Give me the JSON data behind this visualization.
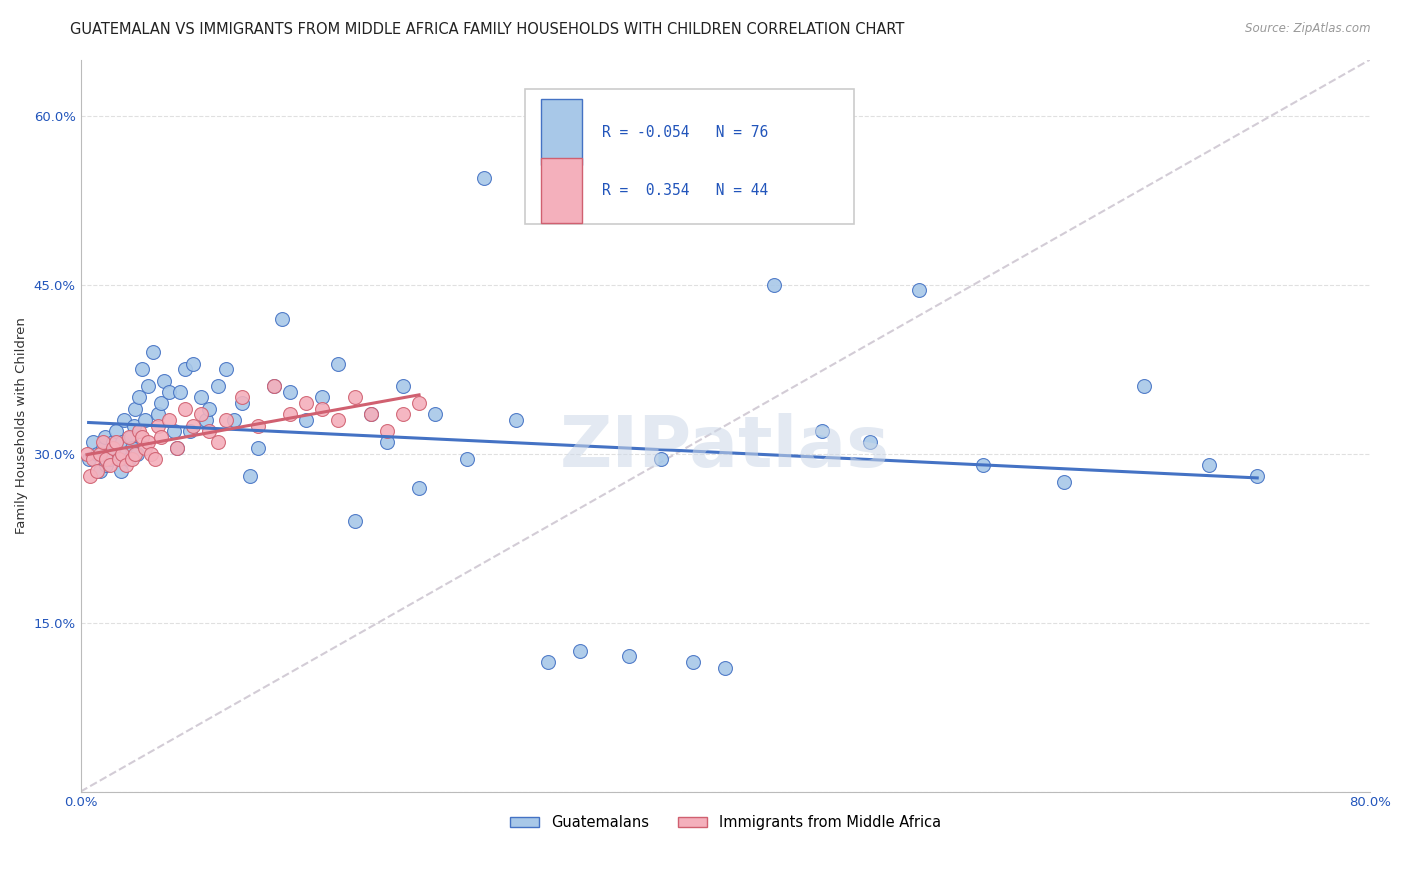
{
  "title": "GUATEMALAN VS IMMIGRANTS FROM MIDDLE AFRICA FAMILY HOUSEHOLDS WITH CHILDREN CORRELATION CHART",
  "source": "Source: ZipAtlas.com",
  "ylabel": "Family Households with Children",
  "xlim": [
    0.0,
    0.8
  ],
  "ylim": [
    0.0,
    0.65
  ],
  "yticks": [
    0.0,
    0.15,
    0.3,
    0.45,
    0.6
  ],
  "ytick_labels": [
    "",
    "15.0%",
    "30.0%",
    "45.0%",
    "60.0%"
  ],
  "xticks": [
    0.0,
    0.1,
    0.2,
    0.3,
    0.4,
    0.5,
    0.6,
    0.7,
    0.8
  ],
  "xtick_labels": [
    "0.0%",
    "",
    "",
    "",
    "",
    "",
    "",
    "",
    "80.0%"
  ],
  "guatemalan_color": "#a8c8e8",
  "immigrant_color": "#f4b0bc",
  "trend_blue": "#4472c4",
  "trend_pink": "#d06070",
  "R_guatemalan": -0.054,
  "N_guatemalan": 76,
  "R_immigrant": 0.354,
  "N_immigrant": 44,
  "guatemalan_x": [
    0.005,
    0.008,
    0.01,
    0.012,
    0.014,
    0.015,
    0.016,
    0.018,
    0.019,
    0.02,
    0.022,
    0.023,
    0.025,
    0.026,
    0.027,
    0.028,
    0.03,
    0.031,
    0.032,
    0.033,
    0.034,
    0.035,
    0.036,
    0.038,
    0.04,
    0.042,
    0.045,
    0.048,
    0.05,
    0.052,
    0.055,
    0.058,
    0.06,
    0.062,
    0.065,
    0.068,
    0.07,
    0.075,
    0.078,
    0.08,
    0.085,
    0.09,
    0.095,
    0.1,
    0.105,
    0.11,
    0.12,
    0.125,
    0.13,
    0.14,
    0.15,
    0.16,
    0.17,
    0.18,
    0.19,
    0.2,
    0.21,
    0.22,
    0.24,
    0.25,
    0.27,
    0.29,
    0.31,
    0.34,
    0.36,
    0.38,
    0.4,
    0.43,
    0.46,
    0.49,
    0.52,
    0.56,
    0.61,
    0.66,
    0.7,
    0.73
  ],
  "guatemalan_y": [
    0.295,
    0.31,
    0.3,
    0.285,
    0.305,
    0.315,
    0.29,
    0.295,
    0.3,
    0.31,
    0.32,
    0.295,
    0.285,
    0.31,
    0.33,
    0.3,
    0.295,
    0.315,
    0.305,
    0.325,
    0.34,
    0.3,
    0.35,
    0.375,
    0.33,
    0.36,
    0.39,
    0.335,
    0.345,
    0.365,
    0.355,
    0.32,
    0.305,
    0.355,
    0.375,
    0.32,
    0.38,
    0.35,
    0.33,
    0.34,
    0.36,
    0.375,
    0.33,
    0.345,
    0.28,
    0.305,
    0.36,
    0.42,
    0.355,
    0.33,
    0.35,
    0.38,
    0.24,
    0.335,
    0.31,
    0.36,
    0.27,
    0.335,
    0.295,
    0.545,
    0.33,
    0.115,
    0.125,
    0.12,
    0.295,
    0.115,
    0.11,
    0.45,
    0.32,
    0.31,
    0.445,
    0.29,
    0.275,
    0.36,
    0.29,
    0.28
  ],
  "immigrant_x": [
    0.004,
    0.006,
    0.008,
    0.01,
    0.012,
    0.014,
    0.016,
    0.018,
    0.02,
    0.022,
    0.024,
    0.026,
    0.028,
    0.03,
    0.032,
    0.034,
    0.036,
    0.038,
    0.04,
    0.042,
    0.044,
    0.046,
    0.048,
    0.05,
    0.055,
    0.06,
    0.065,
    0.07,
    0.075,
    0.08,
    0.085,
    0.09,
    0.1,
    0.11,
    0.12,
    0.13,
    0.14,
    0.15,
    0.16,
    0.17,
    0.18,
    0.19,
    0.2,
    0.21
  ],
  "immigrant_y": [
    0.3,
    0.28,
    0.295,
    0.285,
    0.3,
    0.31,
    0.295,
    0.29,
    0.305,
    0.31,
    0.295,
    0.3,
    0.29,
    0.315,
    0.295,
    0.3,
    0.32,
    0.315,
    0.305,
    0.31,
    0.3,
    0.295,
    0.325,
    0.315,
    0.33,
    0.305,
    0.34,
    0.325,
    0.335,
    0.32,
    0.31,
    0.33,
    0.35,
    0.325,
    0.36,
    0.335,
    0.345,
    0.34,
    0.33,
    0.35,
    0.335,
    0.32,
    0.335,
    0.345
  ],
  "background_color": "#ffffff",
  "grid_color": "#e0e0e0",
  "watermark_text": "ZIPatlas",
  "title_fontsize": 10.5,
  "axis_label_fontsize": 9.5,
  "tick_fontsize": 9.5,
  "legend_fontsize": 10.5
}
